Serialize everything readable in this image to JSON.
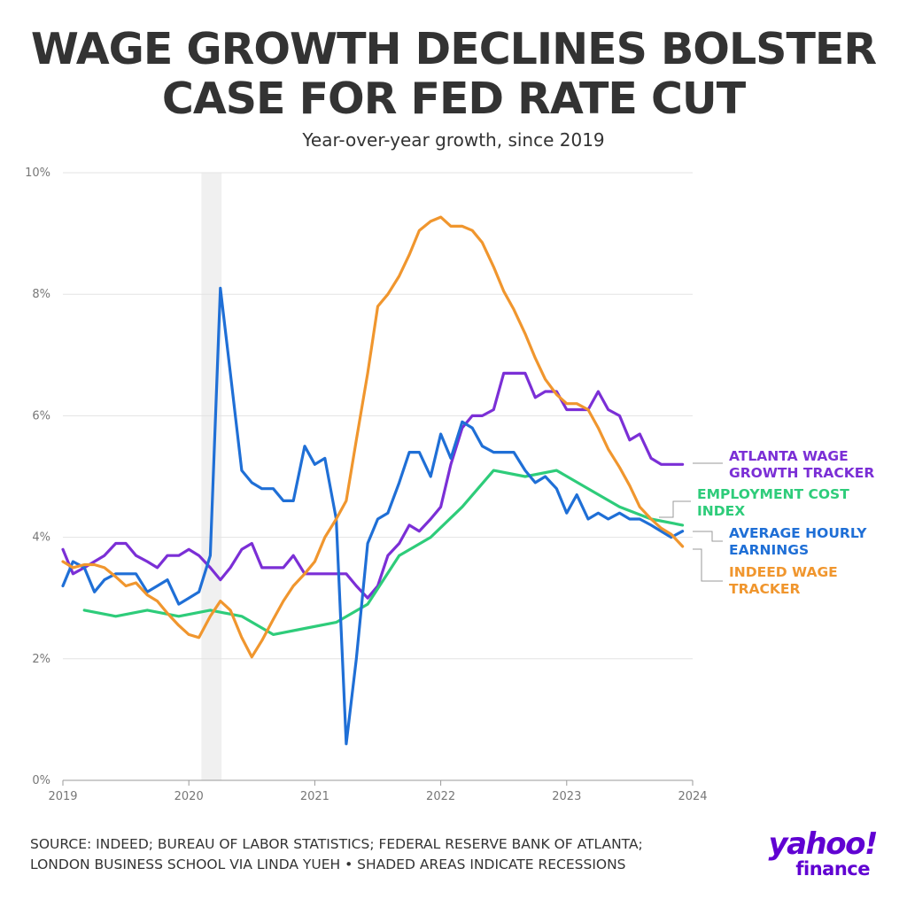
{
  "chart_data": {
    "type": "line",
    "title": "WAGE GROWTH DECLINES BOLSTER CASE FOR FED RATE CUT",
    "subtitle": "Year-over-year growth, since 2019",
    "xlim": [
      2019,
      2024
    ],
    "ylim": [
      0,
      10
    ],
    "x_ticks": [
      "2019",
      "2020",
      "2021",
      "2022",
      "2023",
      "2024"
    ],
    "y_ticks": [
      "0%",
      "2%",
      "4%",
      "6%",
      "8%",
      "10%"
    ],
    "grid": true,
    "recessions": [
      [
        2020.1,
        2020.26
      ]
    ],
    "series": [
      {
        "name": "ATLANTA WAGE GROWTH TRACKER",
        "label_lines": [
          "ATLANTA WAGE",
          "GROWTH TRACKER"
        ],
        "color": "#7b2fd6",
        "x": [
          2019.0,
          2019.08,
          2019.17,
          2019.25,
          2019.33,
          2019.42,
          2019.5,
          2019.58,
          2019.67,
          2019.75,
          2019.83,
          2019.92,
          2020.0,
          2020.08,
          2020.17,
          2020.25,
          2020.33,
          2020.42,
          2020.5,
          2020.58,
          2020.67,
          2020.75,
          2020.83,
          2020.92,
          2021.0,
          2021.08,
          2021.17,
          2021.25,
          2021.33,
          2021.42,
          2021.5,
          2021.58,
          2021.67,
          2021.75,
          2021.83,
          2021.92,
          2022.0,
          2022.08,
          2022.17,
          2022.25,
          2022.33,
          2022.42,
          2022.5,
          2022.58,
          2022.67,
          2022.75,
          2022.83,
          2022.92,
          2023.0,
          2023.08,
          2023.17,
          2023.25,
          2023.33,
          2023.42,
          2023.5,
          2023.58,
          2023.67,
          2023.75,
          2023.83,
          2023.92
        ],
        "y": [
          3.8,
          3.4,
          3.5,
          3.6,
          3.7,
          3.9,
          3.9,
          3.7,
          3.6,
          3.5,
          3.7,
          3.7,
          3.8,
          3.7,
          3.5,
          3.3,
          3.5,
          3.8,
          3.9,
          3.5,
          3.5,
          3.5,
          3.7,
          3.4,
          3.4,
          3.4,
          3.4,
          3.4,
          3.2,
          3.0,
          3.2,
          3.7,
          3.9,
          4.2,
          4.1,
          4.3,
          4.5,
          5.2,
          5.8,
          6.0,
          6.0,
          6.1,
          6.7,
          6.7,
          6.7,
          6.3,
          6.4,
          6.4,
          6.1,
          6.1,
          6.1,
          6.4,
          6.1,
          6.0,
          5.6,
          5.7,
          5.3,
          5.2,
          5.2,
          5.2
        ]
      },
      {
        "name": "EMPLOYMENT COST INDEX",
        "label_lines": [
          "EMPLOYMENT COST",
          "INDEX"
        ],
        "color": "#2ecc7a",
        "x": [
          2019.17,
          2019.42,
          2019.67,
          2019.92,
          2020.17,
          2020.42,
          2020.67,
          2020.92,
          2021.17,
          2021.42,
          2021.67,
          2021.92,
          2022.17,
          2022.42,
          2022.67,
          2022.92,
          2023.17,
          2023.42,
          2023.67,
          2023.92
        ],
        "y": [
          2.8,
          2.7,
          2.8,
          2.7,
          2.8,
          2.7,
          2.4,
          2.5,
          2.6,
          2.9,
          3.7,
          4.0,
          4.5,
          5.1,
          5.0,
          5.1,
          4.8,
          4.5,
          4.3,
          4.2
        ]
      },
      {
        "name": "AVERAGE HOURLY EARNINGS",
        "label_lines": [
          "AVERAGE HOURLY",
          "EARNINGS"
        ],
        "color": "#1f6fd6",
        "x": [
          2019.0,
          2019.08,
          2019.17,
          2019.25,
          2019.33,
          2019.42,
          2019.5,
          2019.58,
          2019.67,
          2019.75,
          2019.83,
          2019.92,
          2020.0,
          2020.08,
          2020.17,
          2020.25,
          2020.33,
          2020.42,
          2020.5,
          2020.58,
          2020.67,
          2020.75,
          2020.83,
          2020.92,
          2021.0,
          2021.08,
          2021.17,
          2021.25,
          2021.33,
          2021.42,
          2021.5,
          2021.58,
          2021.67,
          2021.75,
          2021.83,
          2021.92,
          2022.0,
          2022.08,
          2022.17,
          2022.25,
          2022.33,
          2022.42,
          2022.5,
          2022.58,
          2022.67,
          2022.75,
          2022.83,
          2022.92,
          2023.0,
          2023.08,
          2023.17,
          2023.25,
          2023.33,
          2023.42,
          2023.5,
          2023.58,
          2023.67,
          2023.75,
          2023.83,
          2023.92
        ],
        "y": [
          3.2,
          3.6,
          3.5,
          3.1,
          3.3,
          3.4,
          3.4,
          3.4,
          3.1,
          3.2,
          3.3,
          2.9,
          3.0,
          3.1,
          3.7,
          8.1,
          6.7,
          5.1,
          4.9,
          4.8,
          4.8,
          4.6,
          4.6,
          5.5,
          5.2,
          5.3,
          4.3,
          0.6,
          2.0,
          3.9,
          4.3,
          4.4,
          4.9,
          5.4,
          5.4,
          5.0,
          5.7,
          5.3,
          5.9,
          5.8,
          5.5,
          5.4,
          5.4,
          5.4,
          5.1,
          4.9,
          5.0,
          4.8,
          4.4,
          4.7,
          4.3,
          4.4,
          4.3,
          4.4,
          4.3,
          4.3,
          4.2,
          4.1,
          4.0,
          4.1
        ]
      },
      {
        "name": "INDEED WAGE TRACKER",
        "label_lines": [
          "INDEED WAGE",
          "TRACKER"
        ],
        "color": "#f0962e",
        "x": [
          2019.0,
          2019.08,
          2019.17,
          2019.25,
          2019.33,
          2019.42,
          2019.5,
          2019.58,
          2019.67,
          2019.75,
          2019.83,
          2019.92,
          2020.0,
          2020.08,
          2020.17,
          2020.25,
          2020.33,
          2020.42,
          2020.5,
          2020.58,
          2020.67,
          2020.75,
          2020.83,
          2020.92,
          2021.0,
          2021.08,
          2021.17,
          2021.25,
          2021.33,
          2021.42,
          2021.5,
          2021.58,
          2021.67,
          2021.75,
          2021.83,
          2021.92,
          2022.0,
          2022.08,
          2022.17,
          2022.25,
          2022.33,
          2022.42,
          2022.5,
          2022.58,
          2022.67,
          2022.75,
          2022.83,
          2022.92,
          2023.0,
          2023.08,
          2023.17,
          2023.25,
          2023.33,
          2023.42,
          2023.5,
          2023.58,
          2023.67,
          2023.75,
          2023.83,
          2023.92
        ],
        "y": [
          3.6,
          3.5,
          3.55,
          3.55,
          3.5,
          3.35,
          3.2,
          3.25,
          3.05,
          2.95,
          2.75,
          2.55,
          2.4,
          2.35,
          2.7,
          2.95,
          2.8,
          2.35,
          2.03,
          2.3,
          2.65,
          2.95,
          3.2,
          3.4,
          3.6,
          4.0,
          4.3,
          4.6,
          5.6,
          6.7,
          7.8,
          8.0,
          8.3,
          8.65,
          9.05,
          9.2,
          9.27,
          9.12,
          9.12,
          9.05,
          8.85,
          8.45,
          8.05,
          7.75,
          7.35,
          6.95,
          6.6,
          6.35,
          6.2,
          6.2,
          6.1,
          5.8,
          5.45,
          5.15,
          4.85,
          4.5,
          4.3,
          4.15,
          4.05,
          3.85
        ]
      }
    ]
  },
  "source": {
    "line1": "SOURCE: INDEED; BUREAU OF LABOR STATISTICS; FEDERAL RESERVE BANK OF ATLANTA;",
    "line2": "LONDON BUSINESS SCHOOL VIA LINDA YUEH • SHADED AREAS INDICATE RECESSIONS"
  },
  "logo": {
    "word1": "yahoo!",
    "word2": "finance",
    "color": "#6001d2"
  }
}
